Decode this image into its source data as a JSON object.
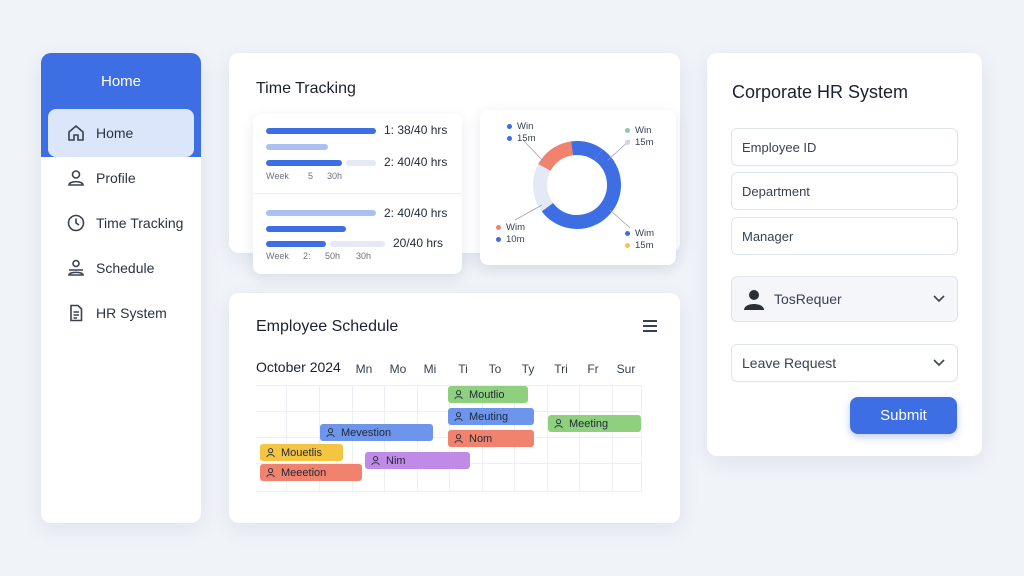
{
  "sidebar": {
    "header": "Home",
    "items": [
      {
        "label": "Home",
        "icon": "home-icon"
      },
      {
        "label": "Profile",
        "icon": "user-icon"
      },
      {
        "label": "Time Tracking",
        "icon": "clock-icon"
      },
      {
        "label": "Schedule",
        "icon": "users-icon"
      },
      {
        "label": "HR System",
        "icon": "document-icon"
      }
    ]
  },
  "time_tracking": {
    "title": "Time Tracking",
    "group1": {
      "labels": [
        "1: 38/40 hrs",
        "2: 40/40 hrs"
      ],
      "week": [
        "Week",
        "5",
        "30h"
      ]
    },
    "group2": {
      "labels": [
        "2: 40/40 hrs",
        "20/40 hrs"
      ],
      "week": [
        "Week",
        "2:",
        "50h",
        "30h"
      ]
    },
    "donut_legend": [
      {
        "line1": "Win",
        "line2": "15m",
        "color": "#3e6ee3"
      },
      {
        "line1": "Win",
        "line2": "15m",
        "color": "#8fc9a8"
      },
      {
        "line1": "Wim",
        "line2": "10m",
        "color": "#f0826e"
      },
      {
        "line1": "Wim",
        "line2": "15m",
        "color": "#f4c542"
      }
    ],
    "donut_segments": [
      {
        "fraction": 0.55,
        "color": "#3e6ee3"
      },
      {
        "fraction": 0.18,
        "color": "#e3e9f7"
      },
      {
        "fraction": 0.15,
        "color": "#f0826e"
      },
      {
        "fraction": 0.12,
        "color": "#3e6ee3"
      }
    ]
  },
  "schedule": {
    "title": "Employee Schedule",
    "month": "October 2024",
    "days": [
      "Mn",
      "Mo",
      "Mi",
      "Ti",
      "To",
      "Ty",
      "Tri",
      "Fr",
      "Sur"
    ],
    "events": [
      {
        "label": "Moutlio",
        "color": "#8fd07e"
      },
      {
        "label": "Meuting",
        "color": "#6d95ec"
      },
      {
        "label": "Meeting",
        "color": "#8fd07e"
      },
      {
        "label": "Mevestion",
        "color": "#6d95ec"
      },
      {
        "label": "Nom",
        "color": "#f0826e"
      },
      {
        "label": "Mouetlis",
        "color": "#f4c542"
      },
      {
        "label": "Nim",
        "color": "#c08be6"
      },
      {
        "label": "Meeetion",
        "color": "#f0826e"
      }
    ]
  },
  "hr": {
    "title": "Corporate HR System",
    "fields": [
      "Employee ID",
      "Department",
      "Manager"
    ],
    "selected_user": "TosRequer",
    "leave_select": "Leave Request",
    "submit": "Submit"
  }
}
